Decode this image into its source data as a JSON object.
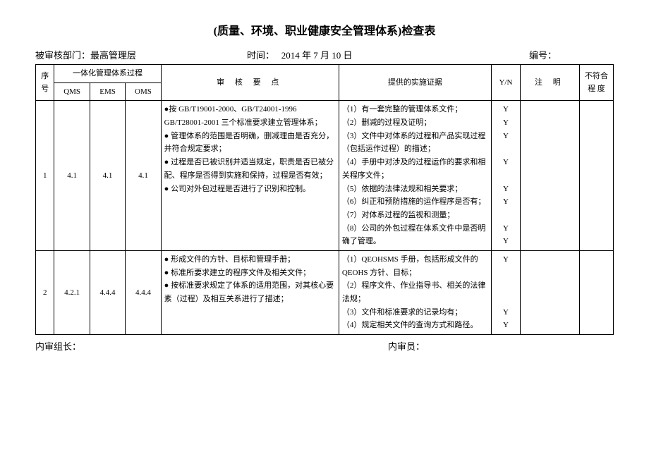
{
  "title": "(质量、环境、职业健康安全管理体系)检查表",
  "info": {
    "dept_label": "被审核部门：",
    "dept_value": "最高管理层",
    "time_label": "时间：",
    "time_value": "2014 年 7 月 10 日",
    "code_label": "编号："
  },
  "headers": {
    "seq": "序号",
    "sys_group": "一体化管理体系过程",
    "qms": "QMS",
    "ems": "EMS",
    "oms": "OMS",
    "keypoints": "审 核 要 点",
    "evidence": "提供的实施证据",
    "yn": "Y/N",
    "note": "注 明",
    "nc": "不符合程 度"
  },
  "rows": [
    {
      "seq": "1",
      "qms": "4.1",
      "ems": "4.1",
      "oms": "4.1",
      "keypoints": "●按 GB/T19001-2000、GB/T24001-1996 GB/T28001-2001 三个标准要求建立管理体系；\n● 管理体系的范围是否明确，删减理由是否充分，并符合规定要求；\n● 过程是否已被识别并适当规定，职责是否已被分配、程序是否得到实施和保持，过程是否有效；\n● 公司对外包过程是否进行了识别和控制。",
      "evidence": "（1）有一套完整的管理体系文件；\n（2）删减的过程及证明；\n（3）文件中对体系的过程和产品实现过程（包括运作过程）的描述；\n（4）手册中对涉及的过程运作的要求和相关程序文件；\n（5）依据的法律法规和相关要求；\n（6）纠正和预防措施的运作程序是否有；\n（7）对体系过程的监视和测量；\n（8）公司的外包过程在体系文件中是否明确了管理。",
      "yn": "Y\nY\nY\n\nY\n\nY\nY\n\nY\nY"
    },
    {
      "seq": "2",
      "qms": "4.2.1",
      "ems": "4.4.4",
      "oms": "4.4.4",
      "keypoints": "● 形成文件的方针、目标和管理手册；\n● 标准所要求建立的程序文件及相关文件；\n● 按标准要求规定了体系的适用范围，对其核心要素（过程）及相互关系进行了描述；",
      "evidence": "（1）QEOHSMS 手册，包括形成文件的 QEOHS 方针、目标；\n（2）程序文件、作业指导书、相关的法律法规；\n（3）文件和标准要求的记录均有；\n（4）规定相关文件的查询方式和路径。",
      "yn": "Y\n\n\n\nY\nY"
    }
  ],
  "footer": {
    "leader_label": "内审组长：",
    "auditor_label": "内审员："
  }
}
